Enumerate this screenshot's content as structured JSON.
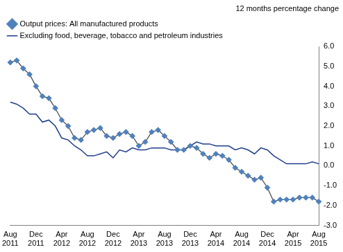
{
  "chart_data": {
    "type": "line",
    "ylabel": "12 months percentage change",
    "categories": [
      "Aug 2011",
      null,
      null,
      null,
      "Dec 2011",
      null,
      null,
      null,
      "Apr 2012",
      null,
      null,
      null,
      "Aug 2012",
      null,
      null,
      null,
      "Dec 2012",
      null,
      null,
      null,
      "Apr 2013",
      null,
      null,
      null,
      "Aug 2013",
      null,
      null,
      null,
      "Dec 2013",
      null,
      null,
      null,
      "Apr 2014",
      null,
      null,
      null,
      "Aug 2014",
      null,
      null,
      null,
      "Dec 2014",
      null,
      null,
      null,
      "Apr 2015",
      null,
      null,
      null,
      "Aug 2015"
    ],
    "series": [
      {
        "name": "Output prices: All manufactured products",
        "color": "#4f81bd",
        "marker": "diamond",
        "line_style": "solid",
        "values": [
          5.2,
          5.3,
          4.9,
          4.6,
          4.0,
          3.5,
          3.4,
          2.9,
          2.3,
          2.0,
          1.4,
          1.3,
          1.7,
          1.8,
          1.9,
          1.5,
          1.4,
          1.6,
          1.7,
          1.5,
          1.0,
          1.2,
          1.7,
          1.8,
          1.5,
          1.2,
          0.8,
          0.8,
          1.0,
          0.9,
          0.6,
          0.4,
          0.6,
          0.5,
          0.3,
          -0.1,
          -0.3,
          -0.5,
          -0.7,
          -0.6,
          -1.1,
          -1.8,
          -1.7,
          -1.7,
          -1.7,
          -1.6,
          -1.6,
          -1.6,
          -1.8
        ]
      },
      {
        "name": "Excluding food, beverage, tobacco and petroleum industries",
        "color": "#1f3e8a",
        "marker": "none",
        "line_style": "solid",
        "values": [
          3.2,
          3.1,
          2.9,
          2.6,
          2.6,
          2.2,
          2.3,
          2.0,
          1.4,
          1.3,
          1.0,
          0.8,
          0.5,
          0.5,
          0.6,
          0.7,
          0.4,
          0.8,
          0.7,
          0.9,
          0.8,
          0.8,
          0.9,
          0.9,
          0.9,
          0.8,
          0.8,
          0.8,
          1.0,
          1.2,
          1.1,
          1.1,
          1.0,
          1.0,
          1.0,
          0.8,
          0.9,
          0.8,
          0.6,
          0.9,
          0.8,
          0.5,
          0.3,
          0.1,
          0.1,
          0.1,
          0.1,
          0.2,
          0.1
        ]
      }
    ],
    "ylim": [
      -3,
      6
    ],
    "yticks": [
      {
        "value": -3,
        "label": "-3.0"
      },
      {
        "value": -2,
        "label": "-2.0"
      },
      {
        "value": -1,
        "label": "-1.0"
      },
      {
        "value": 0,
        "label": "0.0"
      },
      {
        "value": 1,
        "label": "1.0"
      },
      {
        "value": 2,
        "label": "2.0"
      },
      {
        "value": 3,
        "label": "3.0"
      },
      {
        "value": 4,
        "label": "4.0"
      },
      {
        "value": 5,
        "label": "5.0"
      },
      {
        "value": 6,
        "label": "6.0"
      }
    ],
    "grid": false,
    "legend": "top"
  }
}
